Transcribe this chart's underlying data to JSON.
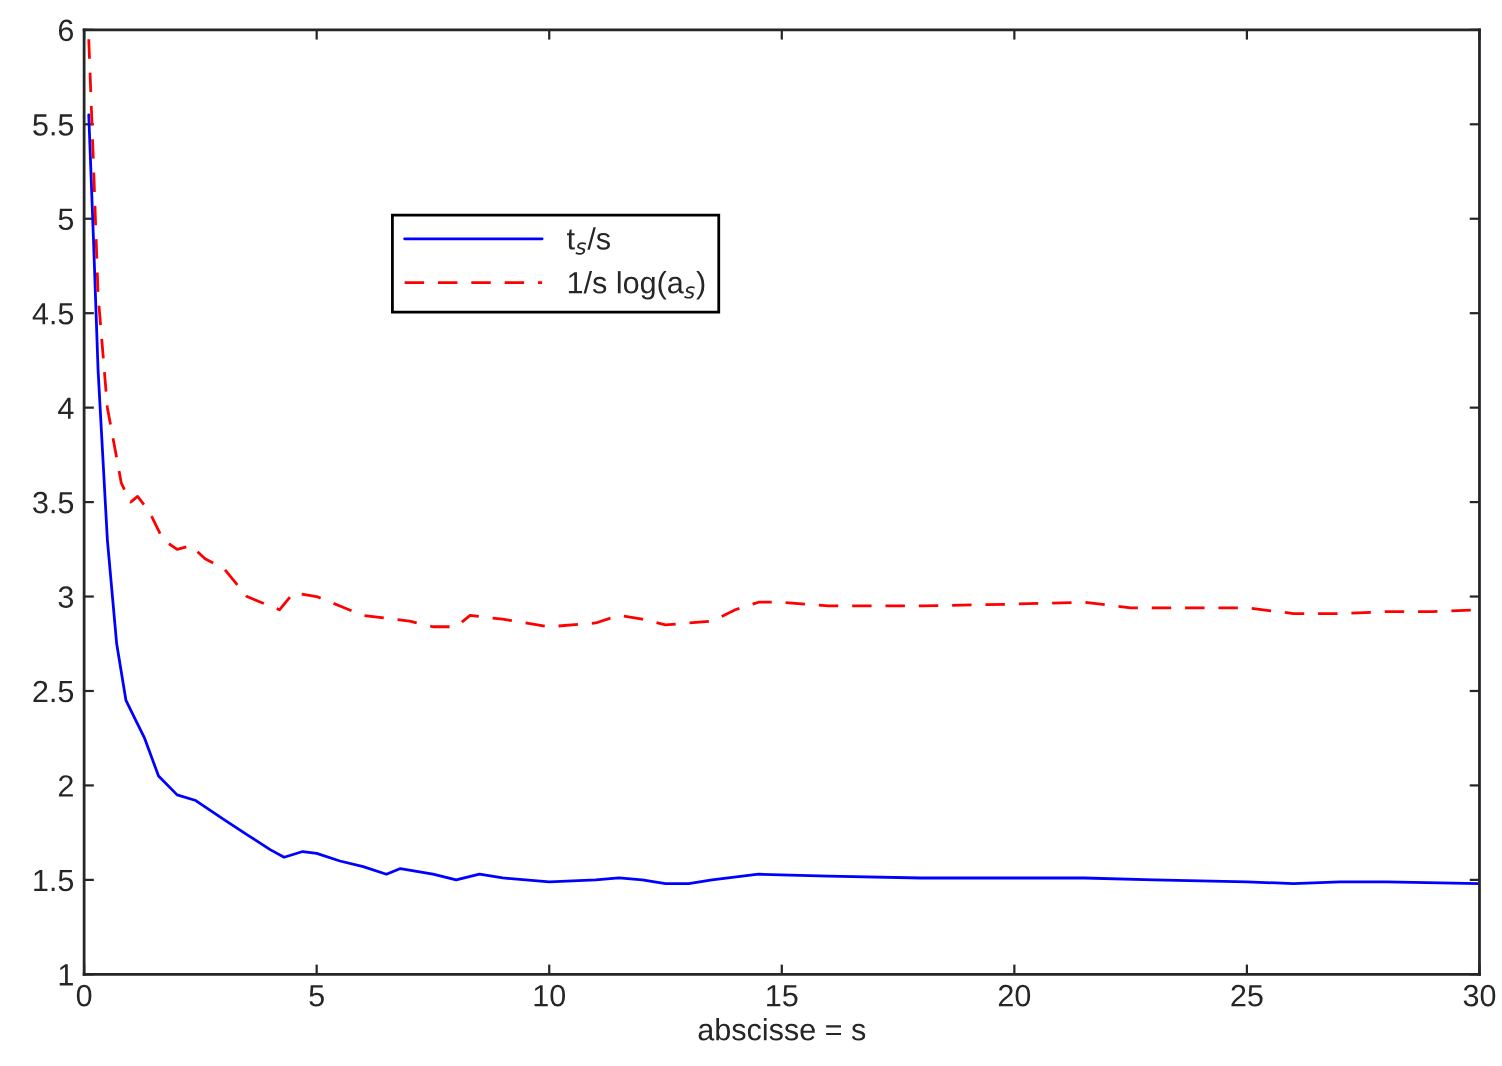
{
  "chart_data": {
    "type": "line",
    "xlabel": "abscisse = s",
    "xlim": [
      0,
      30
    ],
    "xticks": [
      0,
      5,
      10,
      15,
      20,
      25,
      30
    ],
    "ylim": [
      1,
      6
    ],
    "yticks": [
      1,
      1.5,
      2,
      2.5,
      3,
      3.5,
      4,
      4.5,
      5,
      5.5,
      6
    ],
    "grid": false,
    "legend": "top left",
    "series": [
      {
        "name": "t$_{s}$/s",
        "color": "#0000ff",
        "line_style": "solid",
        "x": [
          0.1,
          0.2,
          0.3,
          0.5,
          0.7,
          0.9,
          1.1,
          1.3,
          1.6,
          2,
          2.4,
          3,
          3.5,
          4,
          4.3,
          4.7,
          5,
          5.5,
          6,
          6.5,
          6.8,
          7.5,
          8,
          8.5,
          9,
          10,
          11,
          11.5,
          12,
          12.5,
          13,
          13.5,
          14.5,
          16,
          18,
          20,
          21.5,
          23,
          25,
          26,
          27,
          28,
          30
        ],
        "values": [
          5.55,
          4.9,
          4.2,
          3.3,
          2.75,
          2.45,
          2.35,
          2.25,
          2.05,
          1.95,
          1.92,
          1.82,
          1.74,
          1.66,
          1.62,
          1.65,
          1.64,
          1.6,
          1.57,
          1.53,
          1.56,
          1.53,
          1.5,
          1.53,
          1.51,
          1.49,
          1.5,
          1.51,
          1.5,
          1.48,
          1.48,
          1.5,
          1.53,
          1.52,
          1.51,
          1.51,
          1.51,
          1.5,
          1.49,
          1.48,
          1.49,
          1.49,
          1.48
        ]
      },
      {
        "name": "1/s log(a$_{s}$)",
        "color": "#ff0000",
        "line_style": "dashed",
        "x": [
          0.1,
          0.2,
          0.3,
          0.5,
          0.8,
          1,
          1.15,
          1.4,
          1.7,
          2,
          2.3,
          2.6,
          3,
          3.5,
          4,
          4.2,
          4.5,
          5,
          5.5,
          6,
          7,
          7.5,
          8,
          8.3,
          9,
          10,
          11,
          11.5,
          12,
          12.5,
          13,
          13.5,
          14,
          14.5,
          15,
          16,
          18,
          20,
          21.5,
          22.5,
          24,
          25,
          26,
          27,
          28,
          29,
          30
        ],
        "values": [
          5.95,
          5.3,
          4.6,
          4.0,
          3.6,
          3.5,
          3.53,
          3.45,
          3.3,
          3.25,
          3.27,
          3.2,
          3.15,
          3.0,
          2.95,
          2.93,
          3.02,
          3.0,
          2.95,
          2.9,
          2.87,
          2.84,
          2.84,
          2.9,
          2.88,
          2.84,
          2.86,
          2.9,
          2.88,
          2.85,
          2.86,
          2.87,
          2.93,
          2.97,
          2.97,
          2.95,
          2.95,
          2.96,
          2.97,
          2.94,
          2.94,
          2.94,
          2.91,
          2.91,
          2.92,
          2.92,
          2.93
        ]
      }
    ]
  }
}
